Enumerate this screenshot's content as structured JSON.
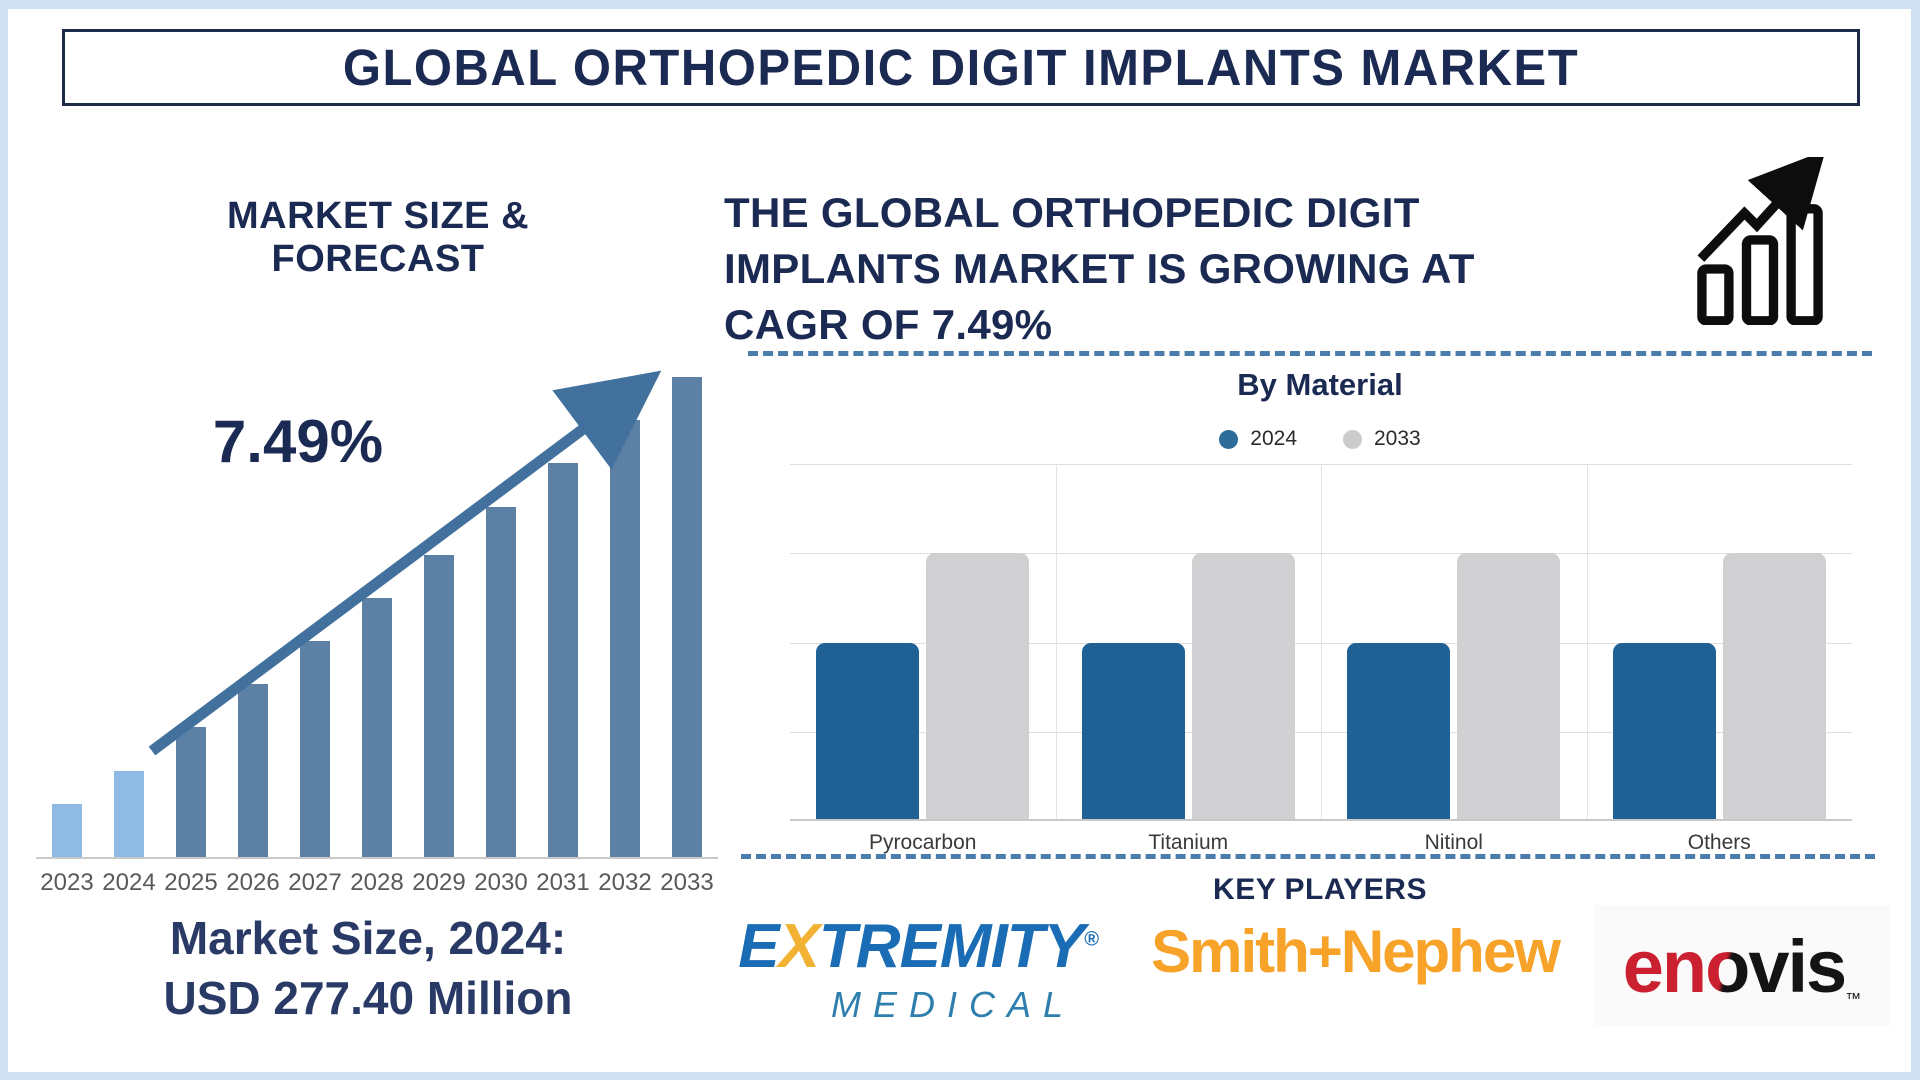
{
  "title": "GLOBAL ORTHOPEDIC DIGIT IMPLANTS MARKET",
  "left": {
    "heading": "MARKET SIZE & FORECAST",
    "cagr_label": "7.49%",
    "market_size_caption_line1": "Market Size, 2024:",
    "market_size_caption_line2": "USD 277.40 Million"
  },
  "right": {
    "growth_lines": [
      "THE GLOBAL ORTHOPEDIC DIGIT",
      "IMPLANTS MARKET IS GROWING AT",
      "CAGR OF 7.49%"
    ],
    "by_material_heading": "By Material"
  },
  "key_players": {
    "heading": "KEY PLAYERS",
    "companies": [
      "Extremity Medical",
      "Smith+Nephew",
      "Enovis"
    ],
    "logo_text": {
      "extremity_e": "E",
      "extremity_x": "X",
      "extremity_rest": "TREMITY",
      "extremity_reg": "®",
      "extremity_line2": "MEDICAL",
      "smith_nephew": "Smith+Nephew",
      "enovis_en": "en",
      "enovis_o": "o",
      "enovis_vis": "vis",
      "enovis_tm": "™"
    }
  },
  "chart_data": [
    {
      "type": "bar",
      "title": "MARKET SIZE & FORECAST",
      "categories": [
        "2023",
        "2024",
        "2025",
        "2026",
        "2027",
        "2028",
        "2029",
        "2030",
        "2031",
        "2032",
        "2033"
      ],
      "values_relative_height_pct": [
        11,
        18,
        27,
        36,
        45,
        54,
        63,
        73,
        82,
        91,
        100
      ],
      "known_points": {
        "market_size_2024_usd_million": 277.4
      },
      "cagr_pct": 7.49,
      "annotation": "7.49%",
      "xlabel": "",
      "ylabel": "",
      "grid": false,
      "axis_values_shown": false,
      "historical_years_count": 2,
      "historical_bar_color": "#8fbae3",
      "forecast_bar_color": "#5d80a5",
      "trend_arrow_color": "#41719c"
    },
    {
      "type": "bar",
      "title": "By Material",
      "categories": [
        "Pyrocarbon",
        "Titanium",
        "Nitinol",
        "Others"
      ],
      "series": [
        {
          "name": "2024",
          "color": "#1f6095",
          "legend_dot_color": "#2e6c99",
          "values_relative_height_pct": [
            50,
            50,
            50,
            50
          ]
        },
        {
          "name": "2033",
          "color": "#d0d0d2",
          "legend_dot_color": "#c9cbcd",
          "values_relative_height_pct": [
            75,
            75,
            75,
            75
          ]
        }
      ],
      "axis_values_shown": false,
      "grid": true,
      "legend_position": "top"
    }
  ],
  "colors": {
    "frame_blue": "#cfe1f0",
    "navy_text": "#1b2a52",
    "dashed_divider": "#4a7dab",
    "year_label_gray": "#595959",
    "smith_nephew_orange": "#f7a329",
    "extremity_blue": "#1a6cb5",
    "extremity_yellow": "#f2b233",
    "enovis_red": "#cb2030",
    "enovis_black": "#141414"
  }
}
